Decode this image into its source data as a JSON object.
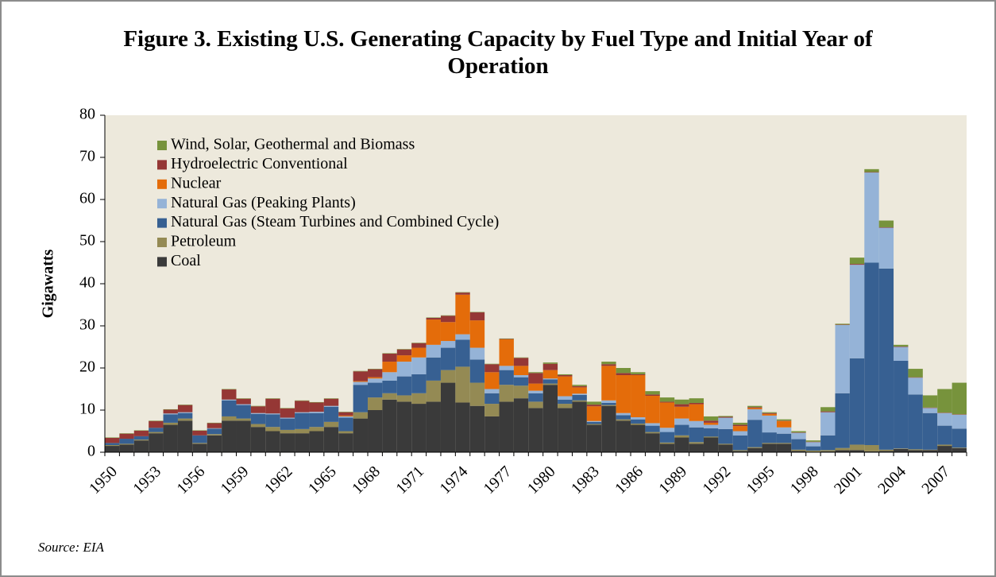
{
  "chart_data": {
    "type": "stacked_bar",
    "title": "Figure 3. Existing U.S. Generating Capacity by Fuel Type and Initial Year of Operation",
    "y_label": "Gigawatts",
    "source": "Source: EIA",
    "categories": [
      "1950",
      null,
      null,
      "1953",
      null,
      null,
      "1956",
      null,
      null,
      "1959",
      null,
      null,
      "1962",
      null,
      null,
      "1965",
      null,
      null,
      "1968",
      null,
      null,
      "1971",
      null,
      null,
      "1974",
      null,
      null,
      "1977",
      null,
      null,
      "1980",
      null,
      null,
      "1983",
      null,
      null,
      "1986",
      null,
      null,
      "1989",
      null,
      null,
      "1992",
      null,
      null,
      "1995",
      null,
      null,
      "1998",
      null,
      null,
      "2001",
      null,
      null,
      "2004",
      null,
      null,
      "2007",
      null
    ],
    "ylim": [
      0,
      80
    ],
    "yticks": [
      0,
      10,
      20,
      30,
      40,
      50,
      60,
      70,
      80
    ],
    "series": [
      {
        "name": "Coal",
        "color": "#3a3a3a",
        "values": [
          1.5,
          1.8,
          2.8,
          4.5,
          6.5,
          7.5,
          2.0,
          4.0,
          7.5,
          7.5,
          6.0,
          5.0,
          4.5,
          4.5,
          5.0,
          6.0,
          4.5,
          8.0,
          10.0,
          12.5,
          12.0,
          11.5,
          12.0,
          16.5,
          11.8,
          11.0,
          8.5,
          12.0,
          12.8,
          10.5,
          16.0,
          10.5,
          12.0,
          6.5,
          11.0,
          7.5,
          6.5,
          4.5,
          2.0,
          3.5,
          2.0,
          3.5,
          1.8,
          0.3,
          1.0,
          2.0,
          2.0,
          0.3,
          0.1,
          0.2,
          0.5,
          0.5,
          0.2,
          0.3,
          0.8,
          0.5,
          0.5,
          1.5,
          1.0
        ]
      },
      {
        "name": "Petroleum",
        "color": "#948a54",
        "values": [
          0.2,
          0.2,
          0.2,
          0.3,
          0.5,
          0.5,
          0.2,
          0.3,
          1.0,
          0.5,
          0.7,
          1.0,
          0.8,
          1.0,
          1.0,
          1.2,
          0.5,
          1.5,
          3.0,
          1.5,
          1.5,
          2.5,
          5.0,
          3.0,
          8.5,
          5.5,
          3.0,
          4.0,
          3.0,
          1.5,
          0.3,
          1.0,
          0.3,
          0.2,
          0.2,
          0.3,
          0.3,
          0.3,
          0.3,
          0.5,
          0.4,
          0.2,
          0.2,
          0.2,
          0.2,
          0.2,
          0.2,
          0.3,
          0.3,
          0.3,
          0.5,
          1.3,
          1.5,
          0.3,
          0.1,
          0.2,
          0.1,
          0.3,
          0.1
        ]
      },
      {
        "name": "Natural Gas (Steam Turbines and Combined Cycle)",
        "color": "#376092",
        "values": [
          0.5,
          1.2,
          0.8,
          1.0,
          2.0,
          1.3,
          1.8,
          1.3,
          3.8,
          3.2,
          2.4,
          3.0,
          2.7,
          3.8,
          3.3,
          3.6,
          3.2,
          6.5,
          3.5,
          3.0,
          4.5,
          4.5,
          5.5,
          5.3,
          6.4,
          5.5,
          2.5,
          3.5,
          2.0,
          2.0,
          1.0,
          1.0,
          1.3,
          0.5,
          0.5,
          1.0,
          1.0,
          1.5,
          2.5,
          2.5,
          3.5,
          2.0,
          3.5,
          3.5,
          6.5,
          2.5,
          2.2,
          2.5,
          1.0,
          3.5,
          13.0,
          20.5,
          43.3,
          43.0,
          20.8,
          13.0,
          8.7,
          4.5,
          4.5
        ]
      },
      {
        "name": "Natural Gas (Peaking Plants)",
        "color": "#95b3d7",
        "values": [
          0,
          0,
          0,
          0,
          0.2,
          0.2,
          0,
          0.1,
          0.2,
          0.2,
          0.2,
          0.2,
          0.2,
          0.2,
          0.3,
          0.2,
          0.3,
          0.7,
          1.0,
          2.0,
          3.5,
          4.0,
          3.0,
          1.6,
          1.3,
          2.8,
          1.0,
          1.0,
          0.5,
          0.6,
          0.2,
          0.8,
          0.3,
          0.2,
          0.6,
          0.5,
          0.5,
          0.6,
          1.0,
          1.5,
          1.5,
          0.8,
          2.7,
          1.0,
          2.5,
          4.0,
          1.5,
          1.5,
          1.0,
          5.5,
          16.2,
          22.2,
          21.4,
          9.7,
          3.3,
          4.0,
          1.2,
          3.0,
          3.3
        ]
      },
      {
        "name": "Nuclear",
        "color": "#e46c0a",
        "values": [
          0,
          0,
          0,
          0,
          0,
          0,
          0,
          0,
          0,
          0,
          0,
          0,
          0,
          0,
          0,
          0,
          0.2,
          0.2,
          0.3,
          2.5,
          1.5,
          2.3,
          6.0,
          4.5,
          9.4,
          6.5,
          4.0,
          6.3,
          2.2,
          1.7,
          2.0,
          4.7,
          1.5,
          3.5,
          8.2,
          9.0,
          10.0,
          6.5,
          6.0,
          2.8,
          4.0,
          0.5,
          0,
          1.2,
          0.3,
          0.4,
          1.5,
          0,
          0,
          0,
          0,
          0,
          0,
          0,
          0,
          0,
          0,
          0,
          0
        ]
      },
      {
        "name": "Hydroelectric Conventional",
        "color": "#953735",
        "values": [
          1.2,
          1.2,
          1.3,
          1.6,
          0.9,
          1.7,
          1.1,
          1.2,
          2.4,
          1.3,
          1.6,
          3.5,
          2.2,
          2.7,
          2.2,
          1.7,
          0.8,
          2.3,
          1.9,
          1.9,
          1.4,
          1.1,
          0.4,
          1.5,
          0.5,
          1.9,
          1.9,
          0.1,
          1.9,
          2.5,
          1.5,
          0.3,
          0.3,
          0.4,
          0.4,
          0.5,
          0.2,
          0.3,
          0.2,
          0.6,
          0.3,
          0.5,
          0.2,
          0.3,
          0.2,
          0.2,
          0.1,
          0.1,
          0.1,
          0.2,
          0.1,
          0.2,
          0.1,
          0.1,
          0.1,
          0.1,
          0.1,
          0.1,
          0.1
        ]
      },
      {
        "name": "Wind, Solar, Geothermal and Biomass",
        "color": "#77933c",
        "values": [
          0.1,
          0.1,
          0.1,
          0.1,
          0.1,
          0.1,
          0.1,
          0.1,
          0.1,
          0.1,
          0.1,
          0.1,
          0.1,
          0.1,
          0.1,
          0.1,
          0.1,
          0.1,
          0.1,
          0.1,
          0.1,
          0.1,
          0.1,
          0.1,
          0.1,
          0.1,
          0.1,
          0.1,
          0.1,
          0.2,
          0.3,
          0.2,
          0.3,
          0.7,
          0.6,
          1.2,
          0.5,
          0.8,
          1.0,
          1.1,
          1.1,
          1.0,
          0.2,
          0.5,
          0.3,
          0.2,
          0.3,
          0.3,
          0.3,
          1.0,
          0.2,
          1.5,
          0.7,
          1.6,
          0.4,
          2.0,
          2.9,
          5.6,
          7.5
        ]
      }
    ]
  }
}
